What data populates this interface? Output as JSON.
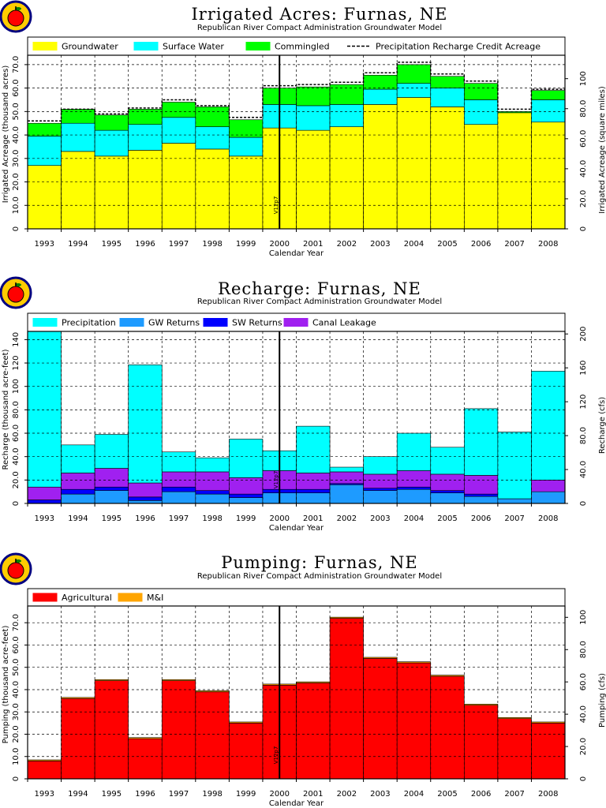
{
  "chart_data": [
    {
      "type": "bar",
      "stacked": true,
      "title": "Irrigated  Acres:  Furnas,  NE",
      "subtitle": "Republican  River  Compact  Administration  Groundwater  Model",
      "xlabel": "Calendar  Year",
      "ylabel": "Irrigated  Acreage  (thousand  acres)",
      "y2label": "Irrigated  Acreage  (square  miles)",
      "categories": [
        "1993",
        "1994",
        "1995",
        "1996",
        "1997",
        "1998",
        "1999",
        "2000",
        "2001",
        "2002",
        "2003",
        "2004",
        "2005",
        "2006",
        "2007",
        "2008"
      ],
      "ylim": [
        0,
        74
      ],
      "yticks": [
        0,
        10.0,
        20.0,
        30.0,
        40.0,
        50.0,
        60.0,
        70.0
      ],
      "ytick_labels": [
        "0",
        "10.0",
        "20.0",
        "30.0",
        "40.0",
        "50.0",
        "60.0",
        "70.0"
      ],
      "y2lim": [
        0,
        115.6
      ],
      "y2ticks": [
        0,
        20.0,
        40.0,
        60.0,
        80.0,
        100
      ],
      "y2tick_labels": [
        "0",
        "20.0",
        "40.0",
        "60.0",
        "80.0",
        "100"
      ],
      "series": [
        {
          "name": "Groundwater",
          "color": "#ffff00",
          "values": [
            27,
            33,
            31,
            33.5,
            36.5,
            34,
            31,
            43,
            42,
            43.5,
            53,
            56,
            52,
            44.5,
            49.5,
            45.5
          ]
        },
        {
          "name": "Surface  Water",
          "color": "#00ffff",
          "values": [
            12.5,
            12,
            11,
            11,
            11,
            9.5,
            8,
            10,
            10.5,
            9.5,
            6.5,
            6,
            8,
            10.5,
            0,
            9.5
          ]
        },
        {
          "name": "Commingled",
          "color": "#00ff00",
          "values": [
            5.5,
            6,
            6.5,
            6.5,
            6.5,
            8.5,
            7.5,
            7,
            8,
            8.5,
            6,
            8,
            5,
            7,
            0.5,
            4
          ]
        }
      ],
      "line_series": {
        "name": "Precipitation  Recharge  Credit  Acreage",
        "style": "dashed",
        "values": [
          46,
          51,
          49,
          51.5,
          55,
          52.5,
          47.5,
          61,
          61.5,
          62.5,
          66.5,
          71,
          66,
          63,
          51,
          59.5
        ]
      },
      "marker": {
        "label": "V12p7",
        "position": 7.5
      },
      "legend": "top"
    },
    {
      "type": "bar",
      "stacked": true,
      "title": "Recharge:  Furnas,  NE",
      "subtitle": "Republican  River  Compact  Administration  Groundwater  Model",
      "xlabel": "Calendar  Year",
      "ylabel": "Recharge  (thousand  acre-feet)",
      "y2label": "Recharge  (cfs)",
      "categories": [
        "1993",
        "1994",
        "1995",
        "1996",
        "1997",
        "1998",
        "1999",
        "2000",
        "2001",
        "2002",
        "2003",
        "2004",
        "2005",
        "2006",
        "2007",
        "2008"
      ],
      "ylim": [
        0,
        147
      ],
      "yticks": [
        0,
        20.0,
        40.0,
        60.0,
        80.0,
        100,
        120,
        140
      ],
      "ytick_labels": [
        "0",
        "20.0",
        "40.0",
        "60.0",
        "80.0",
        "100",
        "120",
        "140"
      ],
      "y2lim": [
        0,
        203
      ],
      "y2ticks": [
        0,
        40.0,
        80.0,
        120,
        160,
        200
      ],
      "y2tick_labels": [
        "0",
        "40.0",
        "80.0",
        "120",
        "160",
        "200"
      ],
      "series": [
        {
          "name": "GW  Returns",
          "color": "#1e9bff",
          "values": [
            0,
            8,
            11,
            2.5,
            10,
            8,
            5,
            9,
            9,
            16,
            11,
            12,
            9,
            6,
            4,
            10
          ]
        },
        {
          "name": "SW  Returns",
          "color": "#0000ff",
          "values": [
            3,
            4,
            3,
            3,
            4,
            3,
            3,
            3,
            3,
            1,
            2,
            2,
            2,
            2,
            0,
            0
          ]
        },
        {
          "name": "Canal  Leakage",
          "color": "#a020f0",
          "values": [
            11,
            14,
            16,
            12,
            13,
            16,
            14,
            16,
            14,
            10,
            12,
            14,
            14,
            16,
            0,
            10
          ]
        },
        {
          "name": "Precipitation",
          "color": "#00ffff",
          "values": [
            133,
            24,
            29,
            101,
            17,
            12,
            33,
            17,
            40,
            4,
            15,
            32,
            23,
            57,
            57,
            93
          ]
        }
      ],
      "legend_order": [
        "Precipitation",
        "GW  Returns",
        "SW  Returns",
        "Canal  Leakage"
      ],
      "marker": {
        "label": "V12p7",
        "position": 7.5
      },
      "legend": "top"
    },
    {
      "type": "bar",
      "stacked": true,
      "title": "Pumping:  Furnas,  NE",
      "subtitle": "Republican  River  Compact  Administration  Groundwater  Model",
      "xlabel": "Calendar  Year",
      "ylabel": "Pumping  (thousand  acre-feet)",
      "y2label": "Pumping  (cfs)",
      "categories": [
        "1993",
        "1994",
        "1995",
        "1996",
        "1997",
        "1998",
        "1999",
        "2000",
        "2001",
        "2002",
        "2003",
        "2004",
        "2005",
        "2006",
        "2007",
        "2008"
      ],
      "ylim": [
        0,
        77.5
      ],
      "yticks": [
        0,
        10.0,
        20.0,
        30.0,
        40.0,
        50.0,
        60.0,
        70.0
      ],
      "ytick_labels": [
        "0",
        "10.0",
        "20.0",
        "30.0",
        "40.0",
        "50.0",
        "60.0",
        "70.0"
      ],
      "y2lim": [
        0,
        107
      ],
      "y2ticks": [
        0,
        20.0,
        40.0,
        60.0,
        80.0,
        100
      ],
      "y2tick_labels": [
        "0",
        "20.0",
        "40.0",
        "60.0",
        "80.0",
        "100"
      ],
      "series": [
        {
          "name": "Agricultural",
          "color": "#ff0000",
          "values": [
            8,
            36,
            44,
            18,
            44,
            39,
            25,
            42,
            43,
            72,
            54,
            52,
            46,
            33,
            27,
            25
          ]
        },
        {
          "name": "M&I",
          "color": "#ffa500",
          "values": [
            0.5,
            0.5,
            0.5,
            0.5,
            0.5,
            0.5,
            0.5,
            0.5,
            0.5,
            0.5,
            0.5,
            0.5,
            0.5,
            0.5,
            0.5,
            0.5
          ]
        }
      ],
      "marker": {
        "label": "V12p7",
        "position": 7.5
      },
      "legend": "top"
    }
  ],
  "logo": {
    "icon": "apple-logo-icon",
    "colors": [
      "#ff0000",
      "#ffcc00",
      "#008000",
      "#000080"
    ]
  }
}
